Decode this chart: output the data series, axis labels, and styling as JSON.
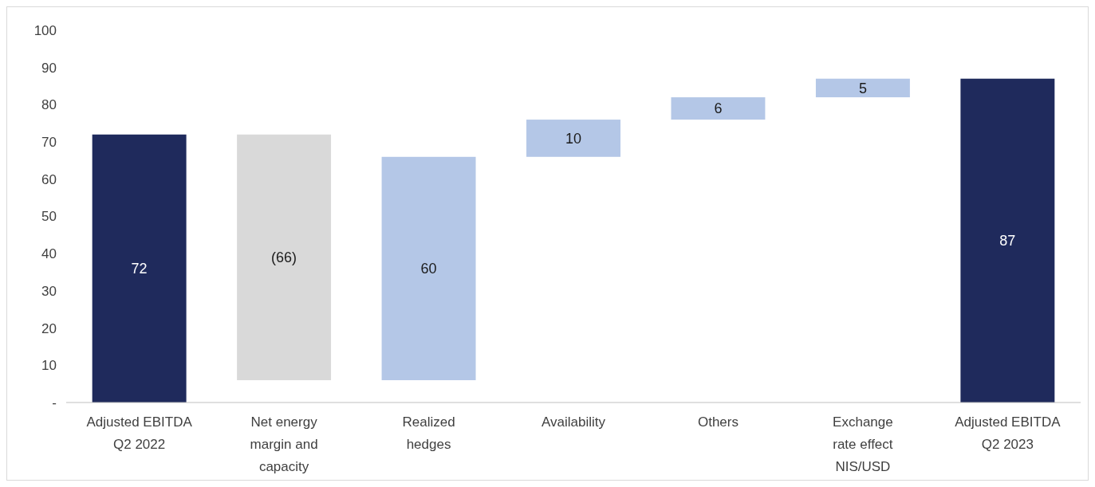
{
  "chart_data": {
    "type": "bar",
    "categories": [
      "Adjusted EBITDA\nQ2 2022",
      "Net energy\nmargin and\ncapacity",
      "Realized\nhedges",
      "Availability",
      "Others",
      "Exchange\nrate effect\nNIS/USD",
      "Adjusted EBITDA\nQ2 2023"
    ],
    "values": [
      72,
      -66,
      60,
      10,
      6,
      5,
      87
    ],
    "base": [
      0,
      72,
      6,
      66,
      76,
      82,
      0
    ],
    "colors": [
      "#1f2a5c",
      "#d9d9d9",
      "#b4c7e7",
      "#b4c7e7",
      "#b4c7e7",
      "#b4c7e7",
      "#1f2a5c"
    ],
    "value_labels": [
      "72",
      "(66)",
      "60",
      "10",
      "6",
      "5",
      "87"
    ],
    "ylim": [
      0,
      100
    ],
    "yticks": [
      {
        "value": 0,
        "label": "-"
      },
      10,
      20,
      30,
      40,
      50,
      60,
      70,
      80,
      90,
      100
    ],
    "grid": false
  }
}
